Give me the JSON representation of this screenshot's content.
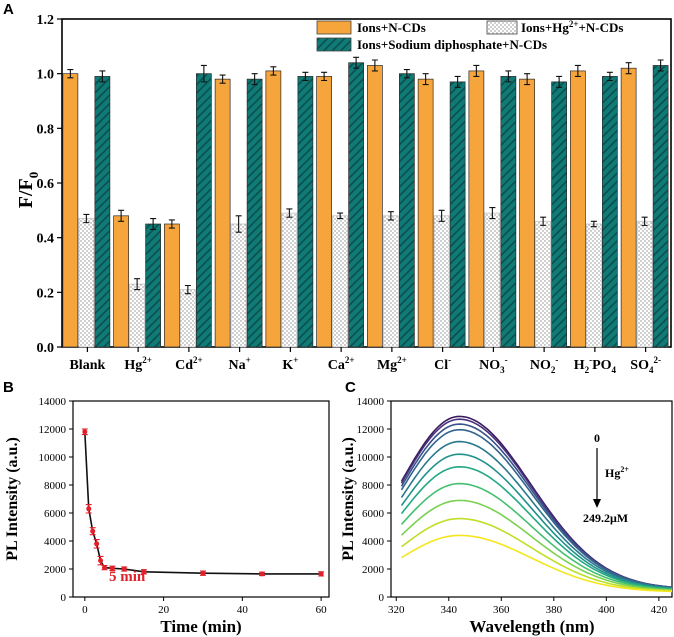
{
  "panel_labels": {
    "a": "A",
    "b": "B",
    "c": "C"
  },
  "colors": {
    "orange": "#f6a53c",
    "teal": "#0f7a76",
    "dots": "#ececec",
    "red": "#e0202a",
    "line": "#111111"
  },
  "chart_data": [
    {
      "id": "A",
      "type": "bar",
      "ylabel_main": "F/F",
      "ylabel_sub": "0",
      "ylim": [
        0,
        1.2
      ],
      "yticks": [
        "0.0",
        "0.2",
        "0.4",
        "0.6",
        "0.8",
        "1.0",
        "1.2"
      ],
      "categories": [
        {
          "base": "Blank",
          "sup": "",
          "sub": ""
        },
        {
          "base": "Hg",
          "sup": "2+",
          "sub": ""
        },
        {
          "base": "Cd",
          "sup": "2+",
          "sub": ""
        },
        {
          "base": "Na",
          "sup": "+",
          "sub": ""
        },
        {
          "base": "K",
          "sup": "+",
          "sub": ""
        },
        {
          "base": "Ca",
          "sup": "2+",
          "sub": ""
        },
        {
          "base": "Mg",
          "sup": "2+",
          "sub": ""
        },
        {
          "base": "Cl",
          "sup": "-",
          "sub": ""
        },
        {
          "base": "NO",
          "sup": "-",
          "sub": "3"
        },
        {
          "base": "NO",
          "sup": "-",
          "sub": "2"
        },
        {
          "base": "H",
          "sup": "-",
          "sub": "2",
          "base2": "PO",
          "sub2": "4"
        },
        {
          "base": "SO",
          "sup": "2-",
          "sub": "4"
        }
      ],
      "series": [
        {
          "name": "Ions+N-CDs",
          "pattern": "orange",
          "values": [
            1.0,
            0.48,
            0.45,
            0.98,
            1.01,
            0.99,
            1.03,
            0.98,
            1.01,
            0.98,
            1.01,
            1.02
          ],
          "errors": [
            0.015,
            0.02,
            0.015,
            0.015,
            0.015,
            0.015,
            0.02,
            0.02,
            0.02,
            0.02,
            0.02,
            0.02
          ]
        },
        {
          "name": "Ions+Hg2++N-CDs",
          "pattern": "dots",
          "values": [
            0.47,
            0.23,
            0.21,
            0.45,
            0.49,
            0.48,
            0.48,
            0.48,
            0.49,
            0.46,
            0.45,
            0.46
          ],
          "errors": [
            0.015,
            0.02,
            0.015,
            0.03,
            0.015,
            0.01,
            0.015,
            0.02,
            0.02,
            0.015,
            0.01,
            0.015
          ]
        },
        {
          "name": "Ions+Sodium diphosphate+N-CDs",
          "pattern": "teal",
          "values": [
            0.99,
            0.45,
            1.0,
            0.98,
            0.99,
            1.04,
            1.0,
            0.97,
            0.99,
            0.97,
            0.99,
            1.03
          ],
          "errors": [
            0.02,
            0.02,
            0.03,
            0.02,
            0.015,
            0.02,
            0.015,
            0.02,
            0.02,
            0.02,
            0.015,
            0.02
          ]
        }
      ],
      "legend": {
        "item1": "Ions+N-CDs",
        "item2_pre": "Ions+Hg",
        "item2_sup": "2+",
        "item2_post": "+N-CDs",
        "item3": "Ions+Sodium diphosphate+N-CDs"
      }
    },
    {
      "id": "B",
      "type": "line",
      "xlabel": "Time (min)",
      "ylabel": "PL Intensity (a.u.)",
      "xlim": [
        -3,
        62
      ],
      "ylim": [
        0,
        14000
      ],
      "xticks": [
        0,
        20,
        40,
        60
      ],
      "yticks": [
        0,
        2000,
        4000,
        6000,
        8000,
        10000,
        12000,
        14000
      ],
      "x": [
        0,
        1,
        2,
        3,
        4,
        5,
        7,
        10,
        15,
        30,
        45,
        60
      ],
      "y": [
        11800,
        6300,
        4700,
        3800,
        2600,
        2100,
        2050,
        2000,
        1800,
        1700,
        1650,
        1650
      ],
      "errors": [
        200,
        300,
        250,
        300,
        300,
        150,
        150,
        150,
        150,
        150,
        120,
        150
      ],
      "annotation": "5 min"
    },
    {
      "id": "C",
      "type": "line",
      "xlabel": "Wavelength (nm)",
      "ylabel": "PL Intensity (a.u.)",
      "xlim": [
        318,
        425
      ],
      "ylim": [
        0,
        14000
      ],
      "xticks": [
        320,
        340,
        360,
        380,
        400,
        420
      ],
      "yticks": [
        0,
        2000,
        4000,
        6000,
        8000,
        10000,
        12000,
        14000
      ],
      "peak_nm": 344,
      "tail_nm": 425,
      "start_fraction": 0.64,
      "series": [
        {
          "peak": 12900,
          "tail": 550,
          "color": "#3d1a5e"
        },
        {
          "peak": 12700,
          "tail": 550,
          "color": "#46337e"
        },
        {
          "peak": 12350,
          "tail": 550,
          "color": "#3b528b"
        },
        {
          "peak": 11950,
          "tail": 550,
          "color": "#33638d"
        },
        {
          "peak": 11100,
          "tail": 530,
          "color": "#2a788e"
        },
        {
          "peak": 10200,
          "tail": 500,
          "color": "#21918c"
        },
        {
          "peak": 9300,
          "tail": 480,
          "color": "#22a884"
        },
        {
          "peak": 8100,
          "tail": 450,
          "color": "#44bf70"
        },
        {
          "peak": 6900,
          "tail": 420,
          "color": "#7ad151"
        },
        {
          "peak": 5600,
          "tail": 380,
          "color": "#bddf26"
        },
        {
          "peak": 4400,
          "tail": 350,
          "color": "#f4e61e"
        }
      ],
      "arrow_top": "0",
      "arrow_ion": "Hg",
      "arrow_ion_sup": "2+",
      "arrow_bottom": "249.2μM"
    }
  ]
}
